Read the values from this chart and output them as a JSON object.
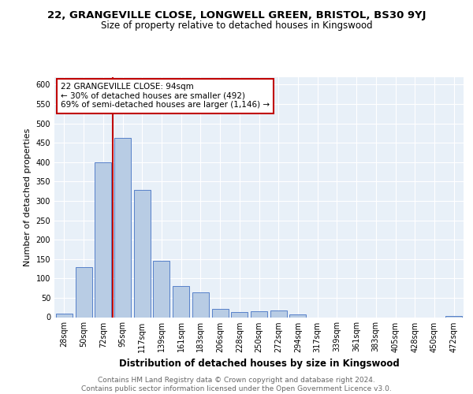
{
  "title_line1": "22, GRANGEVILLE CLOSE, LONGWELL GREEN, BRISTOL, BS30 9YJ",
  "title_line2": "Size of property relative to detached houses in Kingswood",
  "xlabel": "Distribution of detached houses by size in Kingswood",
  "ylabel": "Number of detached properties",
  "categories": [
    "28sqm",
    "50sqm",
    "72sqm",
    "95sqm",
    "117sqm",
    "139sqm",
    "161sqm",
    "183sqm",
    "206sqm",
    "228sqm",
    "250sqm",
    "272sqm",
    "294sqm",
    "317sqm",
    "339sqm",
    "361sqm",
    "383sqm",
    "405sqm",
    "428sqm",
    "450sqm",
    "472sqm"
  ],
  "values": [
    10,
    130,
    400,
    462,
    328,
    145,
    80,
    65,
    22,
    13,
    15,
    17,
    7,
    0,
    0,
    0,
    0,
    0,
    0,
    0,
    4
  ],
  "bar_color": "#b8cce4",
  "bar_edge_color": "#4472c4",
  "vline_index": 3,
  "vline_color": "#c00000",
  "annotation_line1": "22 GRANGEVILLE CLOSE: 94sqm",
  "annotation_line2": "← 30% of detached houses are smaller (492)",
  "annotation_line3": "69% of semi-detached houses are larger (1,146) →",
  "annotation_box_facecolor": "#ffffff",
  "annotation_box_edgecolor": "#c00000",
  "footer_text": "Contains HM Land Registry data © Crown copyright and database right 2024.\nContains public sector information licensed under the Open Government Licence v3.0.",
  "ylim": [
    0,
    620
  ],
  "yticks": [
    0,
    50,
    100,
    150,
    200,
    250,
    300,
    350,
    400,
    450,
    500,
    550,
    600
  ],
  "background_color": "#e8f0f8",
  "grid_color": "#ffffff",
  "title1_fontsize": 9.5,
  "title2_fontsize": 8.5,
  "xlabel_fontsize": 8.5,
  "ylabel_fontsize": 8,
  "tick_fontsize": 7,
  "annotation_fontsize": 7.5,
  "footer_fontsize": 6.5
}
